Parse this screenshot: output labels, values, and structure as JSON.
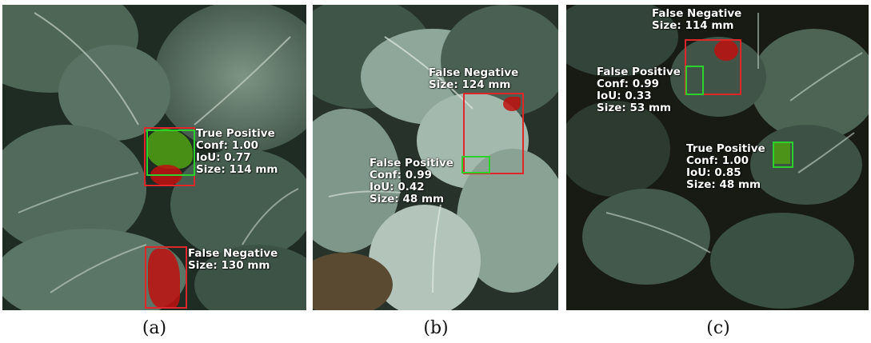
{
  "panels": [
    {
      "caption": "(a)",
      "annotations": [
        {
          "lines": [
            "True Positive",
            "Conf: 1.00",
            "IoU: 0.77",
            "Size: 114 mm"
          ]
        },
        {
          "lines": [
            "False Negative",
            "Size: 130 mm"
          ]
        }
      ]
    },
    {
      "caption": "(b)",
      "annotations": [
        {
          "lines": [
            "False Negative",
            "Size: 124 mm"
          ]
        },
        {
          "lines": [
            "False Positive",
            "Conf: 0.99",
            "IoU: 0.42",
            "Size: 48 mm"
          ]
        }
      ]
    },
    {
      "caption": "(c)",
      "annotations": [
        {
          "lines": [
            "False Negative",
            "Size: 114 mm"
          ]
        },
        {
          "lines": [
            "False Positive",
            "Conf: 0.99",
            "IoU: 0.33",
            "Size: 53 mm"
          ]
        },
        {
          "lines": [
            "True Positive",
            "Conf: 1.00",
            "IoU: 0.85",
            "Size: 48 mm"
          ]
        }
      ]
    }
  ],
  "colors": {
    "ground_truth_box": "#e0262a",
    "prediction_box": "#2bd22b",
    "false_negative_mask": "#c0110f",
    "true_positive_mask": "#4c9a14"
  }
}
